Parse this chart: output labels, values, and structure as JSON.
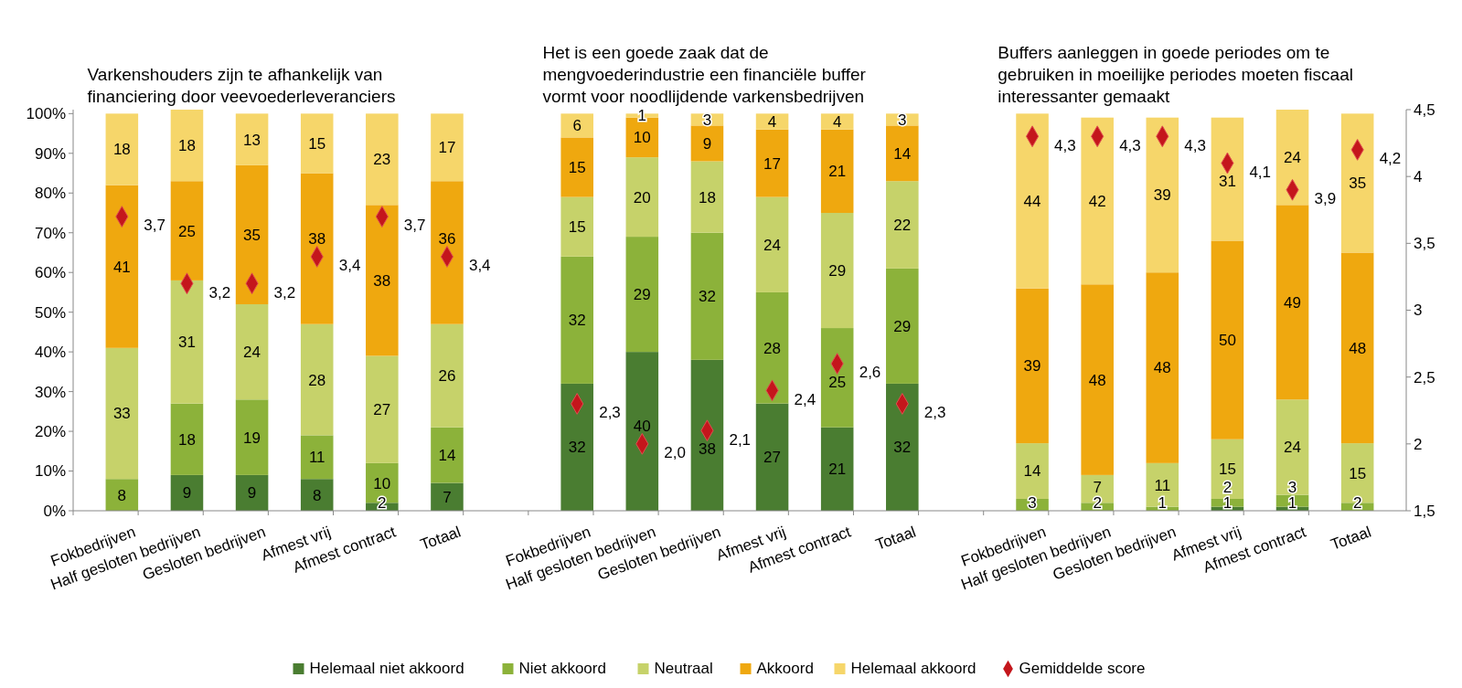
{
  "chart_data": {
    "type": "bar",
    "stacked": true,
    "categories": [
      "Fokbedrijven",
      "Half gesloten bedrijven",
      "Gesloten bedrijven",
      "Afmest vrij",
      "Afmest contract",
      "Totaal",
      null,
      "Fokbedrijven",
      "Half gesloten bedrijven",
      "Gesloten bedrijven",
      "Afmest vrij",
      "Afmest contract",
      "Totaal",
      null,
      "Fokbedrijven",
      "Half gesloten bedrijven",
      "Gesloten bedrijven",
      "Afmest vrij",
      "Afmest contract",
      "Totaal"
    ],
    "annotations": [
      "Varkenshouders zijn te afhankelijk van financiering door veevoederleveranciers",
      "Het is een goede zaak dat de mengvoederindustrie een financiële buffer vormt voor noodlijdende varkensbedrijven",
      "Buffers aanleggen in goede periodes om te gebruiken in moeilijke periodes moeten fiscaal interessanter gemaakt"
    ],
    "series": [
      {
        "name": "Helemaal niet akkoord",
        "color": "#4a7d31",
        "values": [
          null,
          9,
          9,
          8,
          2,
          7,
          null,
          32,
          40,
          38,
          27,
          21,
          32,
          null,
          null,
          null,
          null,
          1,
          1,
          null
        ]
      },
      {
        "name": "Niet akkoord",
        "color": "#8cb23a",
        "values": [
          8,
          18,
          19,
          11,
          10,
          14,
          null,
          32,
          29,
          32,
          28,
          25,
          29,
          null,
          3,
          2,
          1,
          2,
          3,
          2
        ]
      },
      {
        "name": "Neutraal",
        "color": "#c6d26a",
        "values": [
          33,
          31,
          24,
          28,
          27,
          26,
          null,
          15,
          20,
          18,
          24,
          29,
          22,
          null,
          14,
          7,
          11,
          15,
          24,
          15
        ]
      },
      {
        "name": "Akkoord",
        "color": "#efa80f",
        "values": [
          41,
          25,
          35,
          38,
          38,
          36,
          null,
          15,
          10,
          9,
          17,
          21,
          14,
          null,
          39,
          48,
          48,
          50,
          49,
          48
        ]
      },
      {
        "name": "Helemaal akkoord",
        "color": "#f6d66a",
        "values": [
          18,
          18,
          13,
          15,
          23,
          17,
          null,
          6,
          1,
          3,
          4,
          4,
          3,
          null,
          44,
          42,
          39,
          31,
          24,
          35
        ]
      },
      {
        "name": "Gemiddelde score",
        "type": "scatter",
        "axis": "y2",
        "marker": "diamond",
        "color": "#c4161c",
        "values": [
          3.7,
          3.2,
          3.2,
          3.4,
          3.7,
          3.4,
          null,
          2.3,
          2.0,
          2.1,
          2.4,
          2.6,
          2.3,
          null,
          4.3,
          4.3,
          4.3,
          4.1,
          3.9,
          4.2
        ],
        "value_labels": [
          "3,7",
          "3,2",
          "3,2",
          "3,4",
          "3,7",
          "3,4",
          null,
          "2,3",
          "2,0",
          "2,1",
          "2,4",
          "2,6",
          "2,3",
          null,
          "4,3",
          "4,3",
          "4,3",
          "4,1",
          "3,9",
          "4,2"
        ]
      }
    ],
    "data_labels": true,
    "ylim": [
      0,
      101
    ],
    "yticks": [
      {
        "value": 0,
        "label": "0%"
      },
      {
        "value": 10,
        "label": "10%"
      },
      {
        "value": 20,
        "label": "20%"
      },
      {
        "value": 30,
        "label": "30%"
      },
      {
        "value": 40,
        "label": "40%"
      },
      {
        "value": 50,
        "label": "50%"
      },
      {
        "value": 60,
        "label": "60%"
      },
      {
        "value": 70,
        "label": "70%"
      },
      {
        "value": 80,
        "label": "80%"
      },
      {
        "value": 90,
        "label": "90%"
      },
      {
        "value": 100,
        "label": "100%"
      }
    ],
    "y2lim": [
      1.5,
      4.5
    ],
    "y2ticks": [
      {
        "value": 1.5,
        "label": "1,5"
      },
      2,
      {
        "value": 2.5,
        "label": "2,5"
      },
      3,
      {
        "value": 3.5,
        "label": "3,5"
      },
      4,
      {
        "value": 4.5,
        "label": "4,5"
      }
    ],
    "legend": "bottom",
    "grid": false
  }
}
